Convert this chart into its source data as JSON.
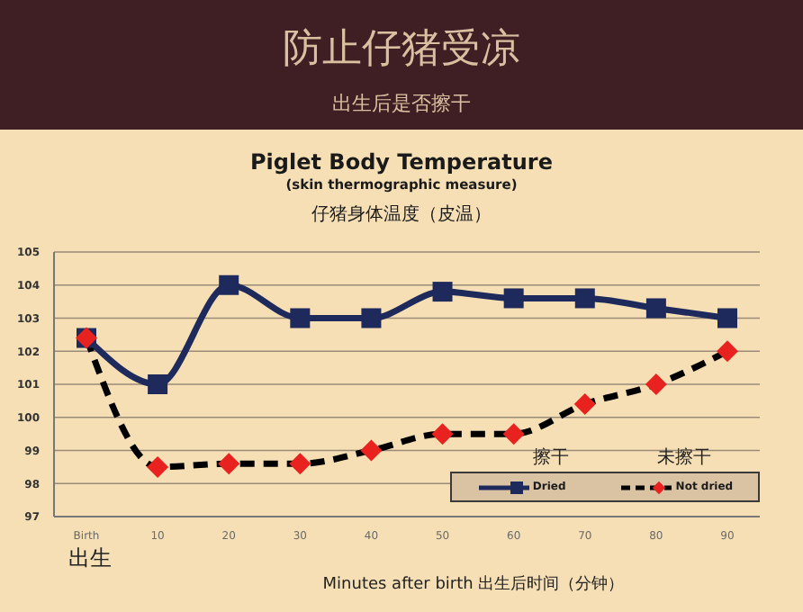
{
  "chart_data": {
    "type": "line",
    "title": "防止仔猪受凉",
    "subtitle": "出生后是否擦干",
    "xlabel": "Minutes after birth 出生后时间（分钟）",
    "annotations": [
      "Piglet Body Temperature",
      "(skin thermographic measure)",
      "仔猪身体温度（皮温）",
      "出生",
      "擦干",
      "未擦干"
    ],
    "categories": [
      "Birth",
      "10",
      "20",
      "30",
      "40",
      "50",
      "60",
      "70",
      "80",
      "90"
    ],
    "series": [
      {
        "name": "Dried",
        "color": "#1f2a5c",
        "marker": "square",
        "line_style": "solid",
        "values": [
          102.4,
          101,
          104,
          103,
          103,
          103.8,
          103.6,
          103.6,
          103.3,
          103
        ]
      },
      {
        "name": "Not dried",
        "color": "#000000",
        "colors": [
          "#e8231f",
          "#e8231f",
          "#e8231f",
          "#e8231f",
          "#e8231f",
          "#e8231f",
          "#e8231f",
          "#e8231f",
          "#e8231f",
          "#e8231f"
        ],
        "marker": "diamond",
        "line_style": "dashed",
        "values": [
          102.4,
          98.5,
          98.6,
          98.6,
          99,
          99.5,
          99.5,
          100.4,
          101,
          102
        ]
      }
    ],
    "ylim": [
      97,
      105
    ],
    "yticks": [
      97,
      98,
      99,
      100,
      101,
      102,
      103,
      104,
      105
    ],
    "grid": "y",
    "legend": "bottom right"
  }
}
